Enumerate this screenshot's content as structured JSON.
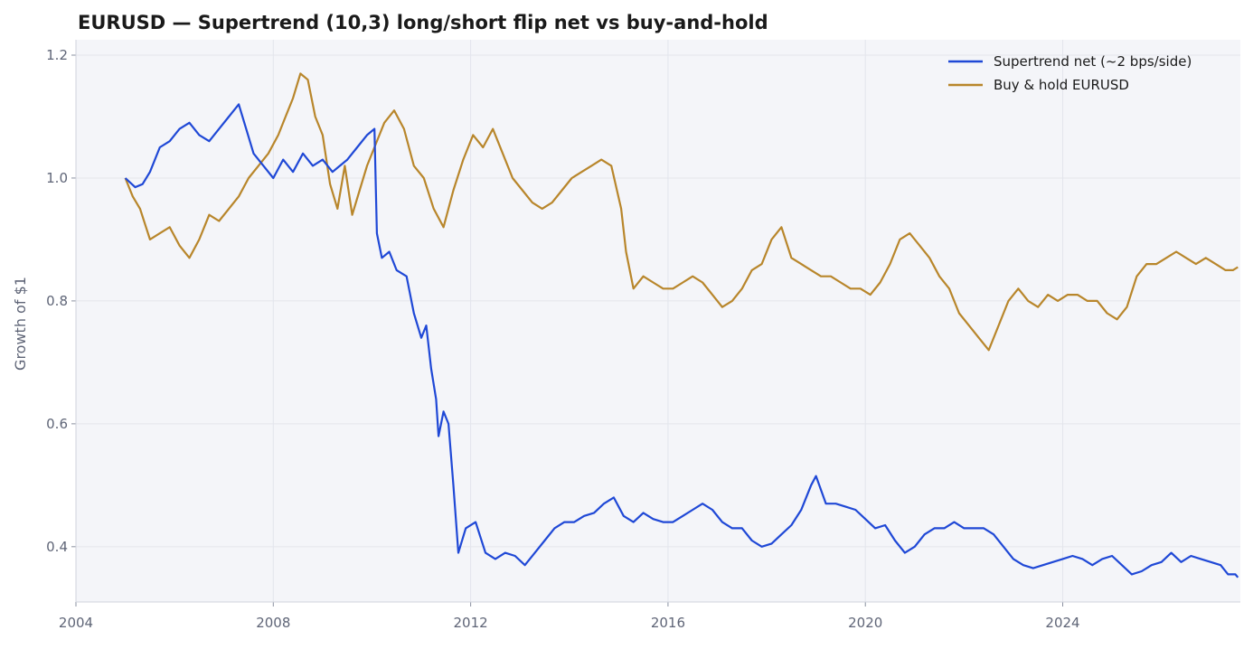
{
  "chart_data": {
    "type": "line",
    "title": "EURUSD — Supertrend (10,3) long/short flip net vs buy-and-hold",
    "xlabel": "",
    "ylabel": "Growth of $1",
    "xlim": [
      2004.0,
      2027.6
    ],
    "ylim": [
      0.31,
      1.225
    ],
    "x_ticks": [
      2004,
      2008,
      2012,
      2016,
      2020,
      2024
    ],
    "x_tick_labels": [
      "2004",
      "2008",
      "2012",
      "2016",
      "2020",
      "2024"
    ],
    "y_ticks": [
      0.4,
      0.6,
      0.8,
      1.0,
      1.2
    ],
    "y_tick_labels": [
      "0.4",
      "0.6",
      "0.8",
      "1.0",
      "1.2"
    ],
    "grid": true,
    "legend_position": "top-right",
    "colors": {
      "plot_bg": "#f4f5f9",
      "grid": "#e3e5ec",
      "spine": "#d0d3dc"
    },
    "series": [
      {
        "name": "Supertrend net (~2 bps/side)",
        "color": "#1f48d6",
        "points": [
          [
            2005.0,
            1.0
          ],
          [
            2005.2,
            0.985
          ],
          [
            2005.35,
            0.99
          ],
          [
            2005.5,
            1.01
          ],
          [
            2005.7,
            1.05
          ],
          [
            2005.9,
            1.06
          ],
          [
            2006.1,
            1.08
          ],
          [
            2006.3,
            1.09
          ],
          [
            2006.5,
            1.07
          ],
          [
            2006.7,
            1.06
          ],
          [
            2006.9,
            1.08
          ],
          [
            2007.1,
            1.1
          ],
          [
            2007.3,
            1.12
          ],
          [
            2007.45,
            1.08
          ],
          [
            2007.6,
            1.04
          ],
          [
            2007.8,
            1.02
          ],
          [
            2008.0,
            1.0
          ],
          [
            2008.2,
            1.03
          ],
          [
            2008.4,
            1.01
          ],
          [
            2008.6,
            1.04
          ],
          [
            2008.8,
            1.02
          ],
          [
            2009.0,
            1.03
          ],
          [
            2009.2,
            1.01
          ],
          [
            2009.35,
            1.02
          ],
          [
            2009.5,
            1.03
          ],
          [
            2009.7,
            1.05
          ],
          [
            2009.9,
            1.07
          ],
          [
            2010.05,
            1.08
          ],
          [
            2010.1,
            0.91
          ],
          [
            2010.2,
            0.87
          ],
          [
            2010.35,
            0.88
          ],
          [
            2010.5,
            0.85
          ],
          [
            2010.7,
            0.84
          ],
          [
            2010.85,
            0.78
          ],
          [
            2011.0,
            0.74
          ],
          [
            2011.1,
            0.76
          ],
          [
            2011.2,
            0.69
          ],
          [
            2011.3,
            0.64
          ],
          [
            2011.35,
            0.58
          ],
          [
            2011.45,
            0.62
          ],
          [
            2011.55,
            0.6
          ],
          [
            2011.65,
            0.5
          ],
          [
            2011.75,
            0.39
          ],
          [
            2011.9,
            0.43
          ],
          [
            2012.1,
            0.44
          ],
          [
            2012.3,
            0.39
          ],
          [
            2012.5,
            0.38
          ],
          [
            2012.7,
            0.39
          ],
          [
            2012.9,
            0.385
          ],
          [
            2013.1,
            0.37
          ],
          [
            2013.3,
            0.39
          ],
          [
            2013.5,
            0.41
          ],
          [
            2013.7,
            0.43
          ],
          [
            2013.9,
            0.44
          ],
          [
            2014.1,
            0.44
          ],
          [
            2014.3,
            0.45
          ],
          [
            2014.5,
            0.455
          ],
          [
            2014.7,
            0.47
          ],
          [
            2014.9,
            0.48
          ],
          [
            2015.1,
            0.45
          ],
          [
            2015.3,
            0.44
          ],
          [
            2015.5,
            0.455
          ],
          [
            2015.7,
            0.445
          ],
          [
            2015.9,
            0.44
          ],
          [
            2016.1,
            0.44
          ],
          [
            2016.3,
            0.45
          ],
          [
            2016.5,
            0.46
          ],
          [
            2016.7,
            0.47
          ],
          [
            2016.9,
            0.46
          ],
          [
            2017.1,
            0.44
          ],
          [
            2017.3,
            0.43
          ],
          [
            2017.5,
            0.43
          ],
          [
            2017.7,
            0.41
          ],
          [
            2017.9,
            0.4
          ],
          [
            2018.1,
            0.405
          ],
          [
            2018.3,
            0.42
          ],
          [
            2018.5,
            0.435
          ],
          [
            2018.7,
            0.46
          ],
          [
            2018.9,
            0.5
          ],
          [
            2019.0,
            0.515
          ],
          [
            2019.2,
            0.47
          ],
          [
            2019.4,
            0.47
          ],
          [
            2019.6,
            0.465
          ],
          [
            2019.8,
            0.46
          ],
          [
            2020.0,
            0.445
          ],
          [
            2020.2,
            0.43
          ],
          [
            2020.4,
            0.435
          ],
          [
            2020.6,
            0.41
          ],
          [
            2020.8,
            0.39
          ],
          [
            2021.0,
            0.4
          ],
          [
            2021.2,
            0.42
          ],
          [
            2021.4,
            0.43
          ],
          [
            2021.6,
            0.43
          ],
          [
            2021.8,
            0.44
          ],
          [
            2022.0,
            0.43
          ],
          [
            2022.2,
            0.43
          ],
          [
            2022.4,
            0.43
          ],
          [
            2022.6,
            0.42
          ],
          [
            2022.8,
            0.4
          ],
          [
            2023.0,
            0.38
          ],
          [
            2023.2,
            0.37
          ],
          [
            2023.4,
            0.365
          ],
          [
            2023.6,
            0.37
          ],
          [
            2023.8,
            0.375
          ],
          [
            2024.0,
            0.38
          ],
          [
            2024.2,
            0.385
          ],
          [
            2024.4,
            0.38
          ],
          [
            2024.6,
            0.37
          ],
          [
            2024.8,
            0.38
          ],
          [
            2025.0,
            0.385
          ],
          [
            2025.2,
            0.37
          ],
          [
            2025.4,
            0.355
          ],
          [
            2025.6,
            0.36
          ],
          [
            2025.8,
            0.37
          ],
          [
            2026.0,
            0.375
          ],
          [
            2026.2,
            0.39
          ],
          [
            2026.4,
            0.375
          ],
          [
            2026.6,
            0.385
          ],
          [
            2026.8,
            0.38
          ],
          [
            2027.0,
            0.375
          ],
          [
            2027.2,
            0.37
          ],
          [
            2027.35,
            0.355
          ],
          [
            2027.5,
            0.355
          ],
          [
            2027.55,
            0.35
          ]
        ]
      },
      {
        "name": "Buy & hold EURUSD",
        "color": "#b8862b",
        "points": [
          [
            2005.0,
            1.0
          ],
          [
            2005.15,
            0.97
          ],
          [
            2005.3,
            0.95
          ],
          [
            2005.5,
            0.9
          ],
          [
            2005.7,
            0.91
          ],
          [
            2005.9,
            0.92
          ],
          [
            2006.1,
            0.89
          ],
          [
            2006.3,
            0.87
          ],
          [
            2006.5,
            0.9
          ],
          [
            2006.7,
            0.94
          ],
          [
            2006.9,
            0.93
          ],
          [
            2007.1,
            0.95
          ],
          [
            2007.3,
            0.97
          ],
          [
            2007.5,
            1.0
          ],
          [
            2007.7,
            1.02
          ],
          [
            2007.9,
            1.04
          ],
          [
            2008.1,
            1.07
          ],
          [
            2008.25,
            1.1
          ],
          [
            2008.4,
            1.13
          ],
          [
            2008.55,
            1.17
          ],
          [
            2008.7,
            1.16
          ],
          [
            2008.85,
            1.1
          ],
          [
            2009.0,
            1.07
          ],
          [
            2009.15,
            0.99
          ],
          [
            2009.3,
            0.95
          ],
          [
            2009.45,
            1.02
          ],
          [
            2009.6,
            0.94
          ],
          [
            2009.75,
            0.98
          ],
          [
            2009.9,
            1.02
          ],
          [
            2010.05,
            1.05
          ],
          [
            2010.25,
            1.09
          ],
          [
            2010.45,
            1.11
          ],
          [
            2010.65,
            1.08
          ],
          [
            2010.85,
            1.02
          ],
          [
            2011.05,
            1.0
          ],
          [
            2011.25,
            0.95
          ],
          [
            2011.45,
            0.92
          ],
          [
            2011.65,
            0.98
          ],
          [
            2011.85,
            1.03
          ],
          [
            2012.05,
            1.07
          ],
          [
            2012.25,
            1.05
          ],
          [
            2012.45,
            1.08
          ],
          [
            2012.65,
            1.04
          ],
          [
            2012.85,
            1.0
          ],
          [
            2013.05,
            0.98
          ],
          [
            2013.25,
            0.96
          ],
          [
            2013.45,
            0.95
          ],
          [
            2013.65,
            0.96
          ],
          [
            2013.85,
            0.98
          ],
          [
            2014.05,
            1.0
          ],
          [
            2014.25,
            1.01
          ],
          [
            2014.45,
            1.02
          ],
          [
            2014.65,
            1.03
          ],
          [
            2014.85,
            1.02
          ],
          [
            2015.05,
            0.95
          ],
          [
            2015.15,
            0.88
          ],
          [
            2015.3,
            0.82
          ],
          [
            2015.5,
            0.84
          ],
          [
            2015.7,
            0.83
          ],
          [
            2015.9,
            0.82
          ],
          [
            2016.1,
            0.82
          ],
          [
            2016.3,
            0.83
          ],
          [
            2016.5,
            0.84
          ],
          [
            2016.7,
            0.83
          ],
          [
            2016.9,
            0.81
          ],
          [
            2017.1,
            0.79
          ],
          [
            2017.3,
            0.8
          ],
          [
            2017.5,
            0.82
          ],
          [
            2017.7,
            0.85
          ],
          [
            2017.9,
            0.86
          ],
          [
            2018.1,
            0.9
          ],
          [
            2018.3,
            0.92
          ],
          [
            2018.5,
            0.87
          ],
          [
            2018.7,
            0.86
          ],
          [
            2018.9,
            0.85
          ],
          [
            2019.1,
            0.84
          ],
          [
            2019.3,
            0.84
          ],
          [
            2019.5,
            0.83
          ],
          [
            2019.7,
            0.82
          ],
          [
            2019.9,
            0.82
          ],
          [
            2020.1,
            0.81
          ],
          [
            2020.3,
            0.83
          ],
          [
            2020.5,
            0.86
          ],
          [
            2020.7,
            0.9
          ],
          [
            2020.9,
            0.91
          ],
          [
            2021.1,
            0.89
          ],
          [
            2021.3,
            0.87
          ],
          [
            2021.5,
            0.84
          ],
          [
            2021.7,
            0.82
          ],
          [
            2021.9,
            0.78
          ],
          [
            2022.1,
            0.76
          ],
          [
            2022.3,
            0.74
          ],
          [
            2022.5,
            0.72
          ],
          [
            2022.7,
            0.76
          ],
          [
            2022.9,
            0.8
          ],
          [
            2023.1,
            0.82
          ],
          [
            2023.3,
            0.8
          ],
          [
            2023.5,
            0.79
          ],
          [
            2023.7,
            0.81
          ],
          [
            2023.9,
            0.8
          ],
          [
            2024.1,
            0.81
          ],
          [
            2024.3,
            0.81
          ],
          [
            2024.5,
            0.8
          ],
          [
            2024.7,
            0.8
          ],
          [
            2024.9,
            0.78
          ],
          [
            2025.1,
            0.77
          ],
          [
            2025.3,
            0.79
          ],
          [
            2025.5,
            0.84
          ],
          [
            2025.7,
            0.86
          ],
          [
            2025.9,
            0.86
          ],
          [
            2026.1,
            0.87
          ],
          [
            2026.3,
            0.88
          ],
          [
            2026.5,
            0.87
          ],
          [
            2026.7,
            0.86
          ],
          [
            2026.9,
            0.87
          ],
          [
            2027.1,
            0.86
          ],
          [
            2027.3,
            0.85
          ],
          [
            2027.45,
            0.85
          ],
          [
            2027.55,
            0.855
          ]
        ]
      }
    ]
  }
}
